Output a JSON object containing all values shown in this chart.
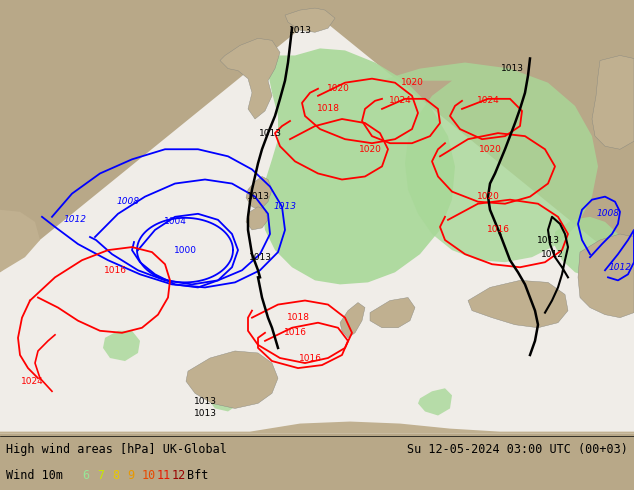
{
  "title_left": "High wind areas [hPa] UK-Global",
  "title_right": "Su 12-05-2024 03:00 UTC (00+03)",
  "wind_label": "Wind 10m",
  "bft_values": [
    "6",
    "7",
    "8",
    "9",
    "10",
    "11",
    "12"
  ],
  "bft_colors": [
    "#98e698",
    "#c8e800",
    "#e8c800",
    "#e89800",
    "#e84800",
    "#e81800",
    "#980000"
  ],
  "bft_suffix": "Bft",
  "bg_color": "#b8a888",
  "map_white": "#f0ede8",
  "land_color": "#c0b090",
  "green_light": "#a8d898",
  "green_med": "#88c878",
  "figure_width": 6.34,
  "figure_height": 4.9,
  "dpi": 100
}
